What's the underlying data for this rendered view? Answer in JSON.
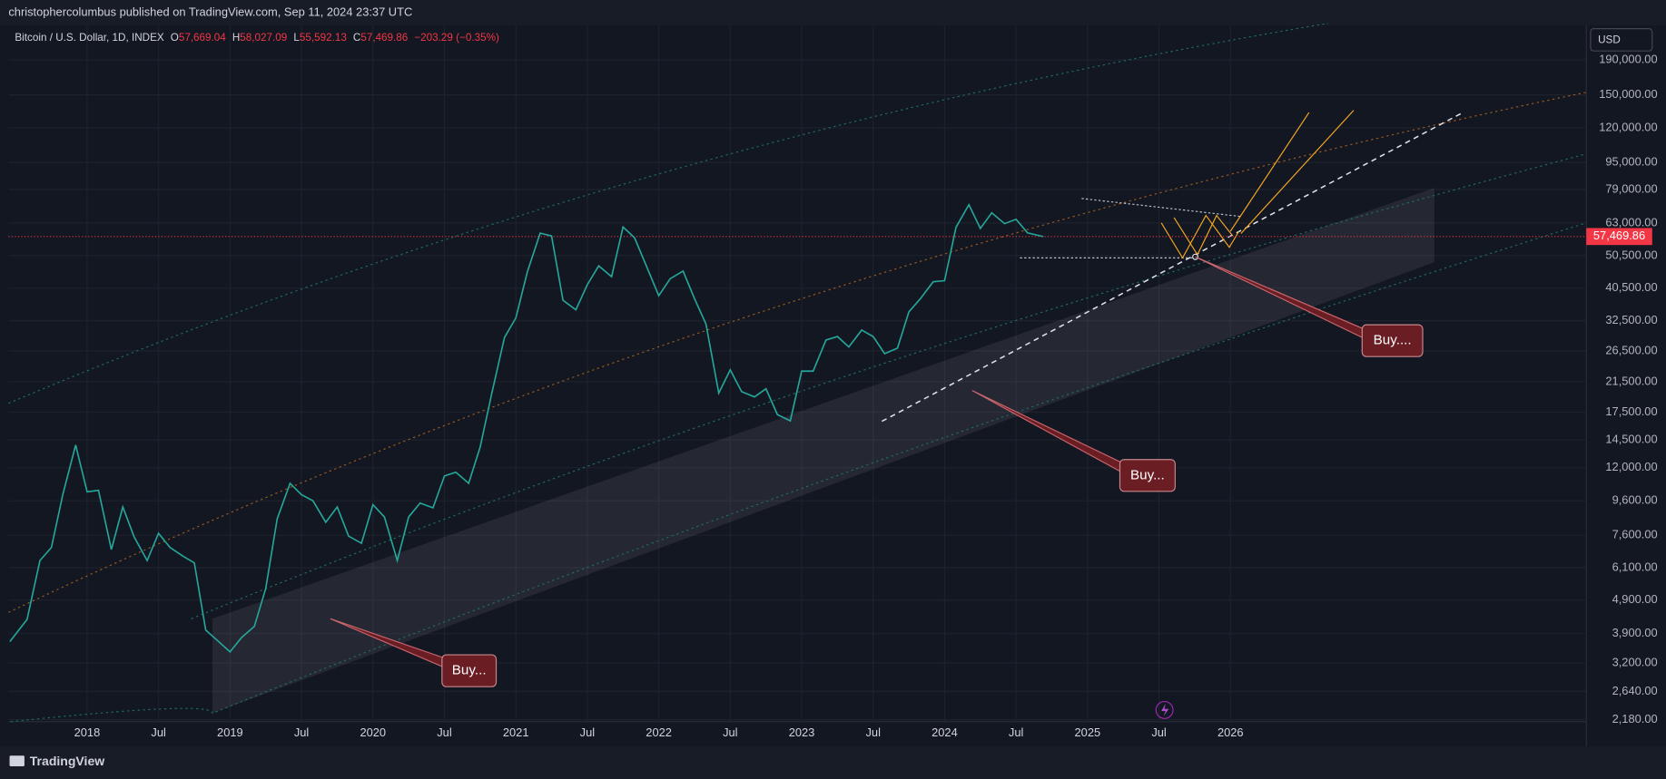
{
  "header": {
    "publisher": "christophercolumbus published on TradingView.com, Sep 11, 2024 23:37 UTC"
  },
  "chart_data": {
    "type": "line",
    "title": "Bitcoin / U.S. Dollar, 1D, INDEX",
    "ohlc": [
      {
        "key": "O",
        "value": "57,669.04"
      },
      {
        "key": "H",
        "value": "58,027.09"
      },
      {
        "key": "L",
        "value": "55,592.13"
      },
      {
        "key": "C",
        "value": "57,469.86"
      }
    ],
    "change": "−203.29 (−0.35%)",
    "currency": "USD",
    "log_scale": true,
    "grid": true,
    "color": "#26a69a",
    "last_price": {
      "value": 57469.86,
      "label": "57,469.86"
    },
    "last_price_color": "#f23645",
    "xlim": [
      2017.45,
      2028.49
    ],
    "ylim": [
      2150,
      240000
    ],
    "xticks": [
      2018,
      {
        "value": 2018.5,
        "label": "Jul"
      },
      2019,
      {
        "value": 2019.5,
        "label": "Jul"
      },
      2020,
      {
        "value": 2020.5,
        "label": "Jul"
      },
      2021,
      {
        "value": 2021.5,
        "label": "Jul"
      },
      2022,
      {
        "value": 2022.5,
        "label": "Jul"
      },
      2023,
      {
        "value": 2023.5,
        "label": "Jul"
      },
      2024,
      {
        "value": 2024.5,
        "label": "Jul"
      },
      2025,
      {
        "value": 2025.5,
        "label": "Jul"
      },
      2026
    ],
    "yticks": [
      {
        "value": 190000,
        "label": "190,000.00"
      },
      {
        "value": 150000,
        "label": "150,000.00"
      },
      {
        "value": 120000,
        "label": "120,000.00"
      },
      {
        "value": 95000,
        "label": "95,000.00"
      },
      {
        "value": 79000,
        "label": "79,000.00"
      },
      {
        "value": 63000,
        "label": "63,000.00"
      },
      {
        "value": 50500,
        "label": "50,500.00"
      },
      {
        "value": 40500,
        "label": "40,500.00"
      },
      {
        "value": 32500,
        "label": "32,500.00"
      },
      {
        "value": 26500,
        "label": "26,500.00"
      },
      {
        "value": 21500,
        "label": "21,500.00"
      },
      {
        "value": 17500,
        "label": "17,500.00"
      },
      {
        "value": 14500,
        "label": "14,500.00"
      },
      {
        "value": 12000,
        "label": "12,000.00"
      },
      {
        "value": 9600,
        "label": "9,600.00"
      },
      {
        "value": 7600,
        "label": "7,600.00"
      },
      {
        "value": 6100,
        "label": "6,100.00"
      },
      {
        "value": 4900,
        "label": "4,900.00"
      },
      {
        "value": 3900,
        "label": "3,900.00"
      },
      {
        "value": 3200,
        "label": "3,200.00"
      },
      {
        "value": 2640,
        "label": "2,640.00"
      },
      {
        "value": 2180,
        "label": "2,180.00"
      }
    ],
    "x": [
      2017.46,
      2017.58,
      2017.67,
      2017.75,
      2017.83,
      2017.92,
      2018.0,
      2018.08,
      2018.17,
      2018.25,
      2018.33,
      2018.42,
      2018.5,
      2018.58,
      2018.67,
      2018.75,
      2018.83,
      2018.92,
      2019.0,
      2019.08,
      2019.17,
      2019.25,
      2019.33,
      2019.42,
      2019.5,
      2019.58,
      2019.67,
      2019.75,
      2019.83,
      2019.92,
      2020.0,
      2020.08,
      2020.17,
      2020.25,
      2020.33,
      2020.42,
      2020.5,
      2020.58,
      2020.67,
      2020.75,
      2020.83,
      2020.92,
      2021.0,
      2021.08,
      2021.17,
      2021.25,
      2021.33,
      2021.42,
      2021.5,
      2021.58,
      2021.67,
      2021.75,
      2021.83,
      2021.92,
      2022.0,
      2022.08,
      2022.17,
      2022.25,
      2022.33,
      2022.42,
      2022.5,
      2022.58,
      2022.67,
      2022.75,
      2022.83,
      2022.92,
      2023.0,
      2023.08,
      2023.17,
      2023.25,
      2023.33,
      2023.42,
      2023.5,
      2023.58,
      2023.67,
      2023.75,
      2023.83,
      2023.92,
      2024.0,
      2024.08,
      2024.17,
      2024.25,
      2024.33,
      2024.42,
      2024.5,
      2024.58,
      2024.69
    ],
    "values": [
      3700,
      4300,
      6400,
      7000,
      10000,
      14000,
      10200,
      10300,
      6900,
      9200,
      7500,
      6400,
      7700,
      7000,
      6600,
      6300,
      4000,
      3700,
      3450,
      3800,
      4100,
      5300,
      8500,
      10800,
      10000,
      9600,
      8300,
      9200,
      7550,
      7200,
      9350,
      8600,
      6400,
      8600,
      9450,
      9150,
      11350,
      11650,
      10800,
      13800,
      19700,
      29000,
      33100,
      45200,
      58800,
      57700,
      37300,
      35000,
      41500,
      47100,
      43800,
      61300,
      57000,
      46300,
      38500,
      43200,
      45500,
      37700,
      31800,
      19900,
      23300,
      20100,
      19400,
      20500,
      17200,
      16500,
      23100,
      23100,
      28500,
      29200,
      27200,
      30500,
      29200,
      26000,
      27000,
      34500,
      37700,
      42300,
      42600,
      61200,
      71300,
      60700,
      67500,
      62700,
      64600,
      58900,
      57470
    ],
    "annotations": [
      "Buy...",
      "Buy...",
      "Buy...."
    ]
  },
  "footer": {
    "brand": "TradingView"
  }
}
